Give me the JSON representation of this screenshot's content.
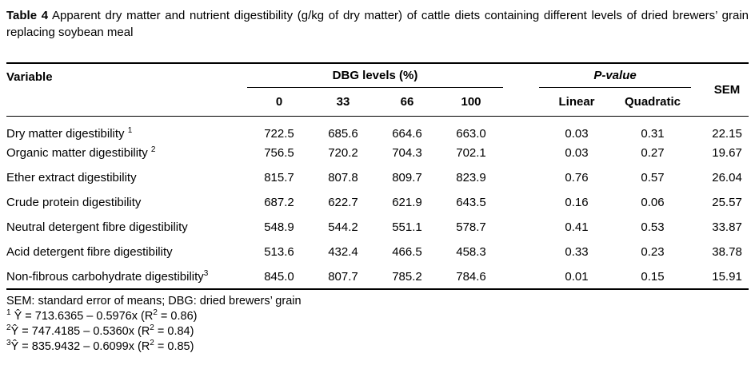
{
  "title": {
    "label": "Table 4",
    "text": " Apparent dry matter and nutrient digestibility (g/kg of dry matter) of cattle diets containing different levels of dried brewers’ grain replacing soybean meal"
  },
  "table": {
    "headers": {
      "variable": "Variable",
      "dbg_group": "DBG levels (%)",
      "pvalue_group": "P-value",
      "sem": "SEM",
      "dbg_levels": [
        "0",
        "33",
        "66",
        "100"
      ],
      "pvalue_cols": [
        "Linear",
        "Quadratic"
      ]
    },
    "rows": [
      {
        "variable": "Dry matter digestibility",
        "sup": "1",
        "sup_space": true,
        "values": [
          "722.5",
          "685.6",
          "664.6",
          "663.0",
          "0.03",
          "0.31",
          "22.15"
        ]
      },
      {
        "variable": "Organic matter digestibility",
        "sup": "2",
        "sup_space": true,
        "values": [
          "756.5",
          "720.2",
          "704.3",
          "702.1",
          "0.03",
          "0.27",
          "19.67"
        ]
      },
      {
        "variable": "Ether extract digestibility",
        "sup": "",
        "sup_space": false,
        "values": [
          "815.7",
          "807.8",
          "809.7",
          "823.9",
          "0.76",
          "0.57",
          "26.04"
        ]
      },
      {
        "variable": "Crude protein digestibility",
        "sup": "",
        "sup_space": false,
        "values": [
          "687.2",
          "622.7",
          "621.9",
          "643.5",
          "0.16",
          "0.06",
          "25.57"
        ]
      },
      {
        "variable": "Neutral detergent fibre digestibility",
        "sup": "",
        "sup_space": false,
        "values": [
          "548.9",
          "544.2",
          "551.1",
          "578.7",
          "0.41",
          "0.53",
          "33.87"
        ]
      },
      {
        "variable": "Acid detergent fibre digestibility",
        "sup": "",
        "sup_space": false,
        "values": [
          "513.6",
          "432.4",
          "466.5",
          "458.3",
          "0.33",
          "0.23",
          "38.78"
        ]
      },
      {
        "variable": "Non-fibrous carbohydrate digestibility",
        "sup": "3",
        "sup_space": false,
        "values": [
          "845.0",
          "807.7",
          "785.2",
          "784.6",
          "0.01",
          "0.15",
          "15.91"
        ]
      }
    ]
  },
  "footnotes": [
    [
      {
        "text": "SEM: standard error of means; DBG: dried brewers’ grain"
      }
    ],
    [
      {
        "text": "1",
        "sup": true
      },
      {
        "text": " Ŷ = 713.6365 – 0.5976x (R"
      },
      {
        "text": "2",
        "sup": true
      },
      {
        "text": " = 0.86)"
      }
    ],
    [
      {
        "text": "2",
        "sup": true
      },
      {
        "text": "Ŷ = 747.4185 – 0.5360x (R"
      },
      {
        "text": "2",
        "sup": true
      },
      {
        "text": " = 0.84)"
      }
    ],
    [
      {
        "text": "3",
        "sup": true
      },
      {
        "text": "Ŷ = 835.9432 – 0.6099x (R"
      },
      {
        "text": "2",
        "sup": true
      },
      {
        "text": " = 0.85)"
      }
    ]
  ]
}
